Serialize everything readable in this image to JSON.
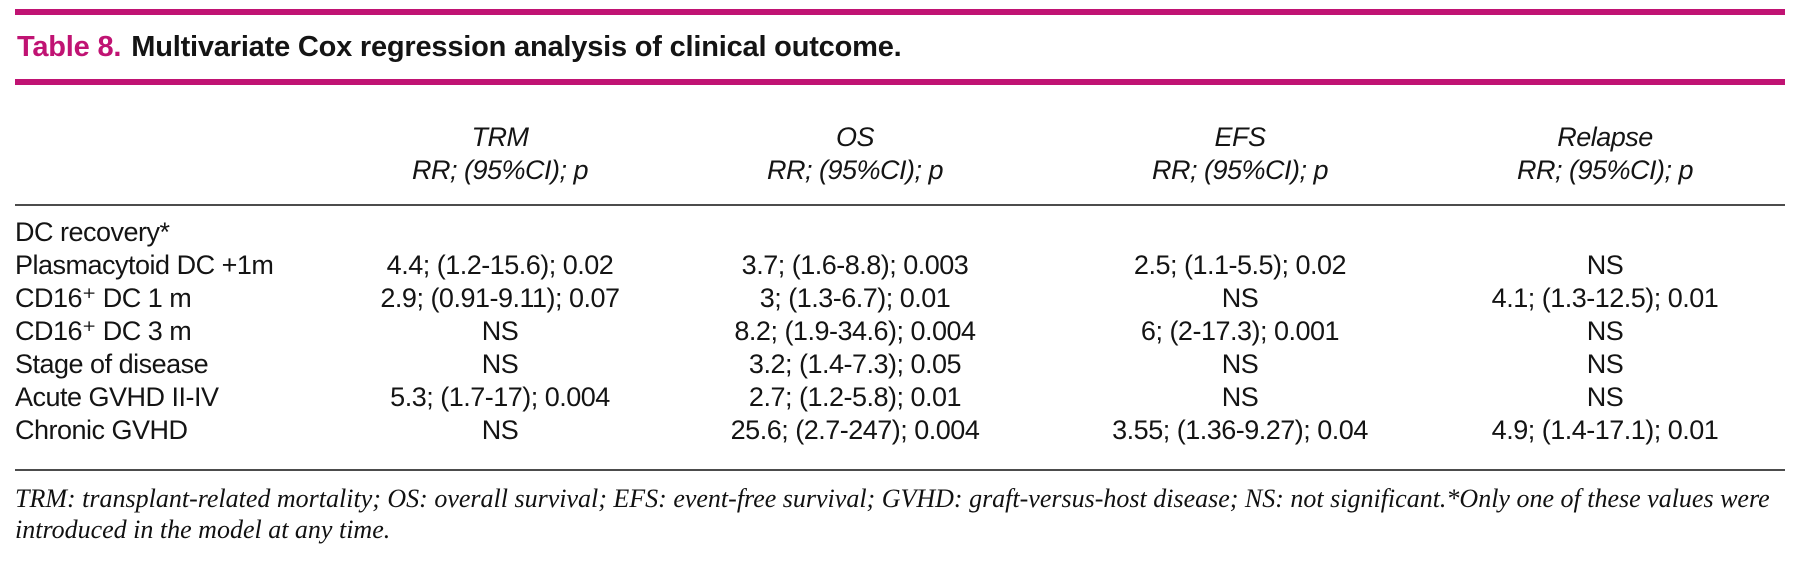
{
  "colors": {
    "accent": "#c01373",
    "rule": "#4c4c4c"
  },
  "title": {
    "label": "Table 8.",
    "text": "Multivariate Cox regression analysis of clinical outcome."
  },
  "table": {
    "columns": [
      {
        "title": "TRM",
        "subtitle": "RR; (95%CI); p"
      },
      {
        "title": "OS",
        "subtitle": "RR; (95%CI); p"
      },
      {
        "title": "EFS",
        "subtitle": "RR; (95%CI); p"
      },
      {
        "title": "Relapse",
        "subtitle": "RR; (95%CI); p"
      }
    ],
    "rows": [
      {
        "cells": [
          "DC recovery*",
          "",
          "",
          "",
          ""
        ]
      },
      {
        "cells": [
          "Plasmacytoid DC +1m",
          "4.4; (1.2-15.6); 0.02",
          "3.7; (1.6-8.8); 0.003",
          "2.5; (1.1-5.5); 0.02",
          "NS"
        ]
      },
      {
        "cells": [
          "CD16⁺ DC 1 m",
          "2.9; (0.91-9.11); 0.07",
          "3; (1.3-6.7); 0.01",
          "NS",
          "4.1; (1.3-12.5); 0.01"
        ]
      },
      {
        "cells": [
          "CD16⁺ DC 3 m",
          "NS",
          "8.2; (1.9-34.6); 0.004",
          "6; (2-17.3); 0.001",
          "NS"
        ]
      },
      {
        "cells": [
          "Stage of disease",
          "NS",
          "3.2; (1.4-7.3); 0.05",
          "NS",
          "NS"
        ]
      },
      {
        "cells": [
          "Acute GVHD II-IV",
          "5.3; (1.7-17); 0.004",
          "2.7; (1.2-5.8); 0.01",
          "NS",
          "NS"
        ]
      },
      {
        "cells": [
          "Chronic GVHD",
          "NS",
          "25.6; (2.7-247); 0.004",
          "3.55; (1.36-9.27); 0.04",
          "4.9; (1.4-17.1); 0.01"
        ]
      }
    ]
  },
  "footnote": "TRM: transplant-related mortality; OS: overall survival; EFS: event-free survival; GVHD: graft-versus-host disease; NS: not significant.*Only one of these values were introduced in the model at any time."
}
